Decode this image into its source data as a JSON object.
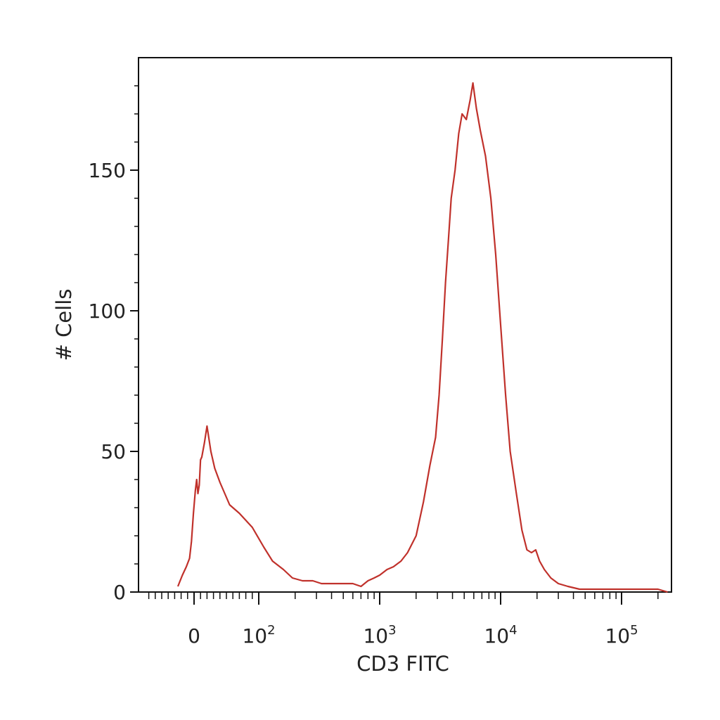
{
  "chart_data": {
    "type": "line",
    "xlabel": "CD3 FITC",
    "ylabel": "# Cells",
    "x_scale": "biexponential (log above 10^2)",
    "x_ticks": [
      {
        "base": "0",
        "exp": ""
      },
      {
        "base": "10",
        "exp": "2"
      },
      {
        "base": "10",
        "exp": "3"
      },
      {
        "base": "10",
        "exp": "4"
      },
      {
        "base": "10",
        "exp": "5"
      }
    ],
    "ylim": [
      0,
      190
    ],
    "y_ticks": [
      "0",
      "50",
      "100",
      "150"
    ],
    "grid": false,
    "line_color": "#c0312b",
    "series": [
      {
        "values": [
          [
            -25,
            2
          ],
          [
            -18,
            6
          ],
          [
            -12,
            9
          ],
          [
            -7,
            12
          ],
          [
            -4,
            18
          ],
          [
            -1,
            28
          ],
          [
            2,
            36
          ],
          [
            4,
            40
          ],
          [
            6,
            35
          ],
          [
            8,
            38
          ],
          [
            10,
            47
          ],
          [
            12,
            48
          ],
          [
            16,
            53
          ],
          [
            20,
            59
          ],
          [
            26,
            50
          ],
          [
            32,
            44
          ],
          [
            40,
            39
          ],
          [
            55,
            31
          ],
          [
            70,
            28
          ],
          [
            90,
            23
          ],
          [
            110,
            16
          ],
          [
            130,
            11
          ],
          [
            160,
            8
          ],
          [
            190,
            5
          ],
          [
            230,
            4
          ],
          [
            280,
            4
          ],
          [
            330,
            3
          ],
          [
            400,
            3
          ],
          [
            500,
            3
          ],
          [
            600,
            3
          ],
          [
            700,
            2
          ],
          [
            800,
            4
          ],
          [
            900,
            5
          ],
          [
            1000,
            6
          ],
          [
            1150,
            8
          ],
          [
            1300,
            9
          ],
          [
            1500,
            11
          ],
          [
            1700,
            14
          ],
          [
            2000,
            20
          ],
          [
            2300,
            32
          ],
          [
            2600,
            45
          ],
          [
            2900,
            55
          ],
          [
            3100,
            70
          ],
          [
            3300,
            90
          ],
          [
            3500,
            110
          ],
          [
            3700,
            125
          ],
          [
            3900,
            140
          ],
          [
            4200,
            150
          ],
          [
            4500,
            163
          ],
          [
            4800,
            170
          ],
          [
            5200,
            168
          ],
          [
            5600,
            175
          ],
          [
            5900,
            181
          ],
          [
            6300,
            172
          ],
          [
            6800,
            164
          ],
          [
            7500,
            155
          ],
          [
            8300,
            140
          ],
          [
            9100,
            120
          ],
          [
            10000,
            95
          ],
          [
            11000,
            70
          ],
          [
            12000,
            50
          ],
          [
            13500,
            35
          ],
          [
            15000,
            22
          ],
          [
            16500,
            15
          ],
          [
            18000,
            14
          ],
          [
            19500,
            15
          ],
          [
            21000,
            11
          ],
          [
            23000,
            8
          ],
          [
            26000,
            5
          ],
          [
            30000,
            3
          ],
          [
            36000,
            2
          ],
          [
            45000,
            1
          ],
          [
            60000,
            1
          ],
          [
            100000,
            1
          ],
          [
            200000,
            1
          ],
          [
            240000,
            0
          ]
        ]
      }
    ]
  }
}
